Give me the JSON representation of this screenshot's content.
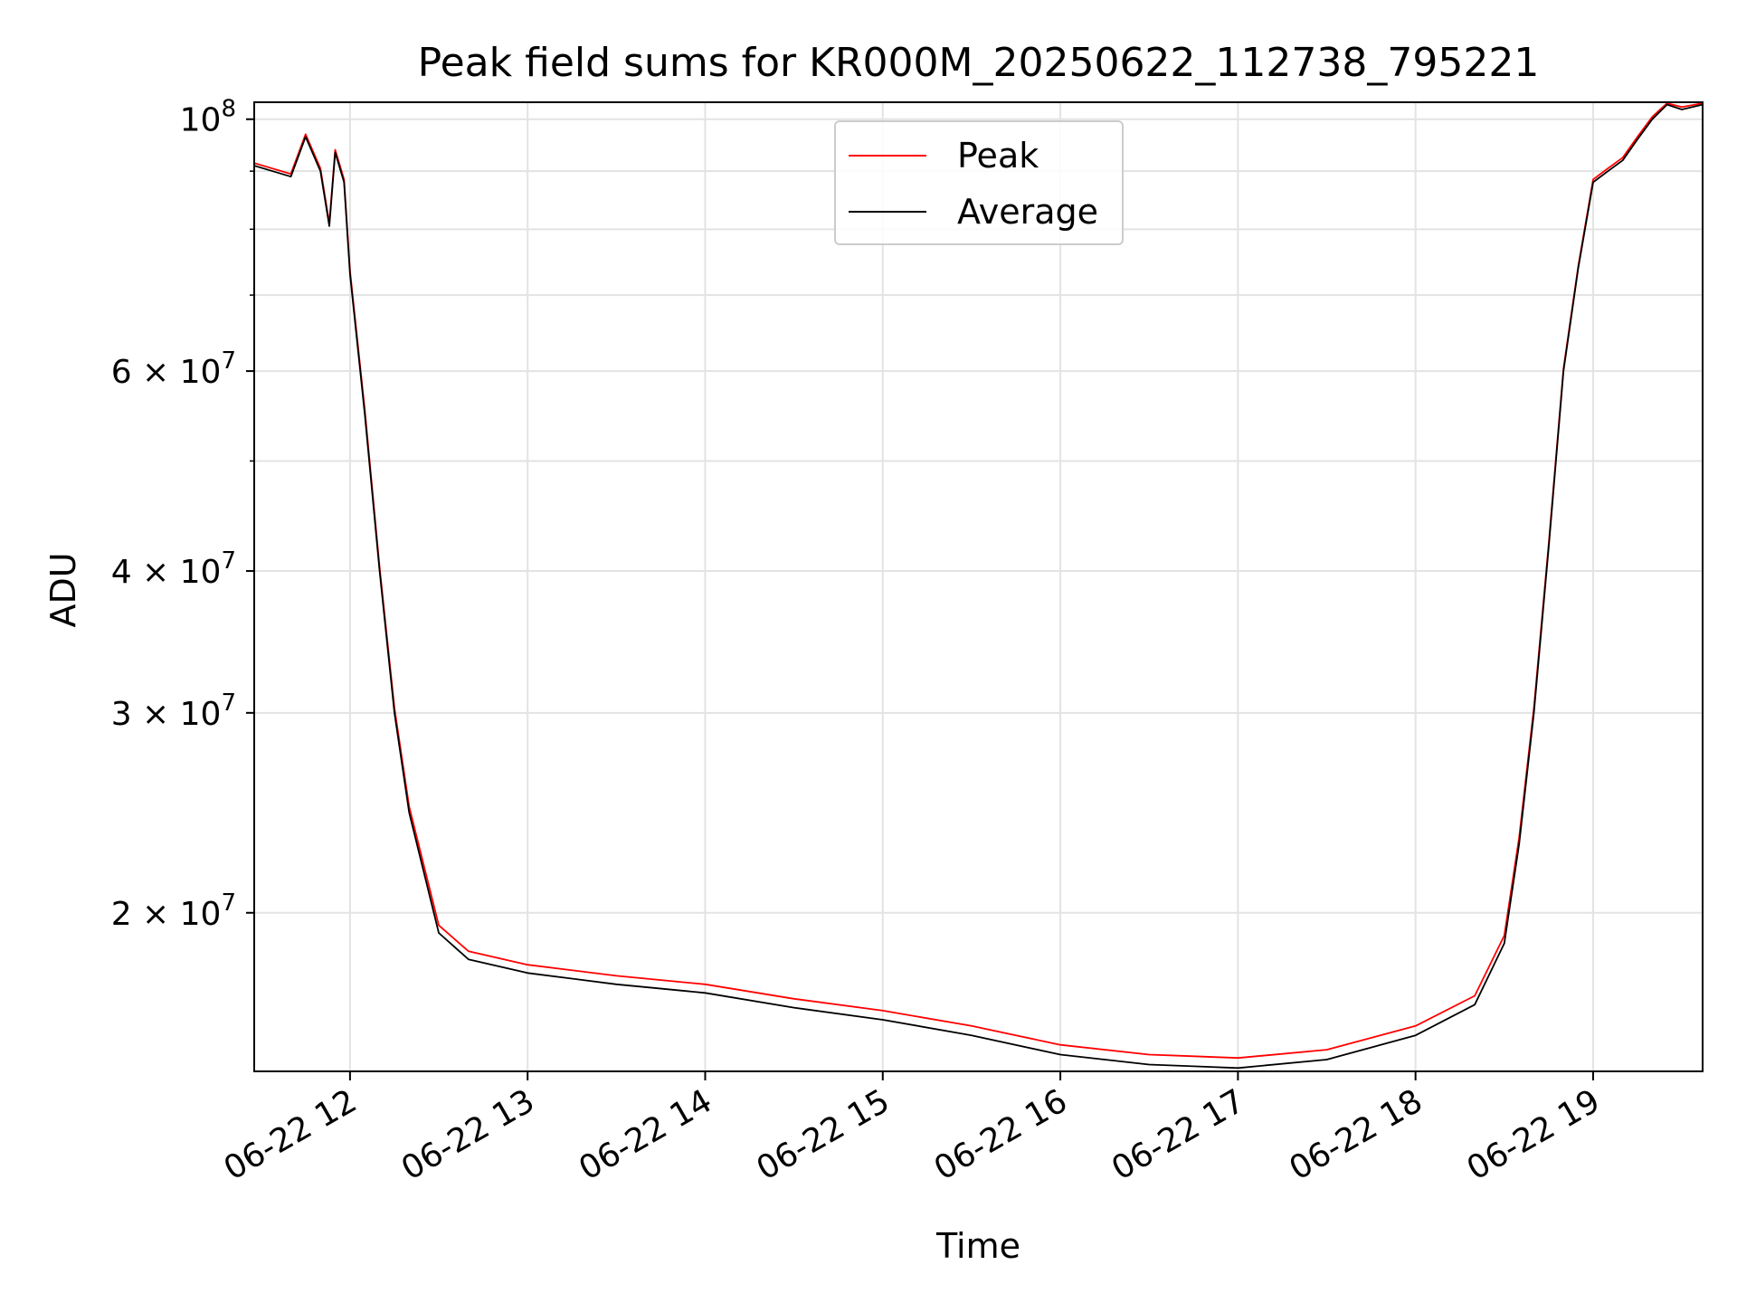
{
  "chart_data": {
    "type": "line",
    "title": "Peak field sums for KR000M_20250622_112738_795221",
    "xlabel": "Time",
    "ylabel": "ADU",
    "x_ticks": [
      "06-22 12",
      "06-22 13",
      "06-22 14",
      "06-22 15",
      "06-22 16",
      "06-22 17",
      "06-22 18",
      "06-22 19"
    ],
    "y_ticks": [
      {
        "value": 20000000,
        "label": "2 × 10",
        "exp": "7"
      },
      {
        "value": 30000000,
        "label": "3 × 10",
        "exp": "7"
      },
      {
        "value": 40000000,
        "label": "4 × 10",
        "exp": "7"
      },
      {
        "value": 60000000,
        "label": "6 × 10",
        "exp": "7"
      },
      {
        "value": 100000000,
        "label": "10",
        "exp": "8"
      }
    ],
    "y_scale": "log",
    "ylim": [
      14500000,
      103500000
    ],
    "xlim": [
      "2025-06-22 11:27:38",
      "2025-06-22 19:37:00"
    ],
    "grid": true,
    "legend_position": "top-center",
    "colors": {
      "peak": "#ff0000",
      "average": "#000000",
      "grid": "#e3e3e3"
    },
    "series": [
      {
        "name": "Average",
        "x": [
          "11:27:38",
          "11:40",
          "11:45",
          "11:50",
          "11:53",
          "11:55",
          "11:58",
          "12:00",
          "12:05",
          "12:10",
          "12:15",
          "12:20",
          "12:30",
          "12:40",
          "13:00",
          "13:30",
          "14:00",
          "14:30",
          "15:00",
          "15:30",
          "16:00",
          "16:30",
          "16:45",
          "17:00",
          "17:30",
          "18:00",
          "18:20",
          "18:30",
          "18:35",
          "18:40",
          "18:45",
          "18:50",
          "18:55",
          "19:00",
          "19:05",
          "19:10",
          "19:15",
          "19:20",
          "19:25",
          "19:30",
          "19:37"
        ],
        "values": [
          91000000,
          89000000,
          96500000,
          90000000,
          80500000,
          93500000,
          88000000,
          73000000,
          55000000,
          40000000,
          30000000,
          24500000,
          19200000,
          18200000,
          17700000,
          17300000,
          17000000,
          16500000,
          16100000,
          15600000,
          15000000,
          14700000,
          14650000,
          14600000,
          14850000,
          15600000,
          16600000,
          18800000,
          23000000,
          30000000,
          42000000,
          60000000,
          74000000,
          88000000,
          90000000,
          92000000,
          96000000,
          100000000,
          103000000,
          102000000,
          103000000
        ]
      },
      {
        "name": "Peak",
        "x": [
          "11:27:38",
          "11:40",
          "11:45",
          "11:50",
          "11:53",
          "11:55",
          "11:58",
          "12:00",
          "12:05",
          "12:10",
          "12:15",
          "12:20",
          "12:30",
          "12:40",
          "13:00",
          "13:30",
          "14:00",
          "14:30",
          "15:00",
          "15:30",
          "16:00",
          "16:30",
          "16:45",
          "17:00",
          "17:30",
          "18:00",
          "18:20",
          "18:30",
          "18:35",
          "18:40",
          "18:45",
          "18:50",
          "18:55",
          "19:00",
          "19:05",
          "19:10",
          "19:15",
          "19:20",
          "19:25",
          "19:30",
          "19:37"
        ],
        "values": [
          91500000,
          89500000,
          97000000,
          90500000,
          81000000,
          94000000,
          88500000,
          73500000,
          55500000,
          40300000,
          30300000,
          24800000,
          19500000,
          18500000,
          18000000,
          17600000,
          17300000,
          16800000,
          16400000,
          15900000,
          15300000,
          15000000,
          14950000,
          14900000,
          15150000,
          15900000,
          16900000,
          19100000,
          23300000,
          30300000,
          42300000,
          60300000,
          74300000,
          88500000,
          90500000,
          92500000,
          96500000,
          100500000,
          103300000,
          102500000,
          103300000
        ]
      }
    ]
  }
}
